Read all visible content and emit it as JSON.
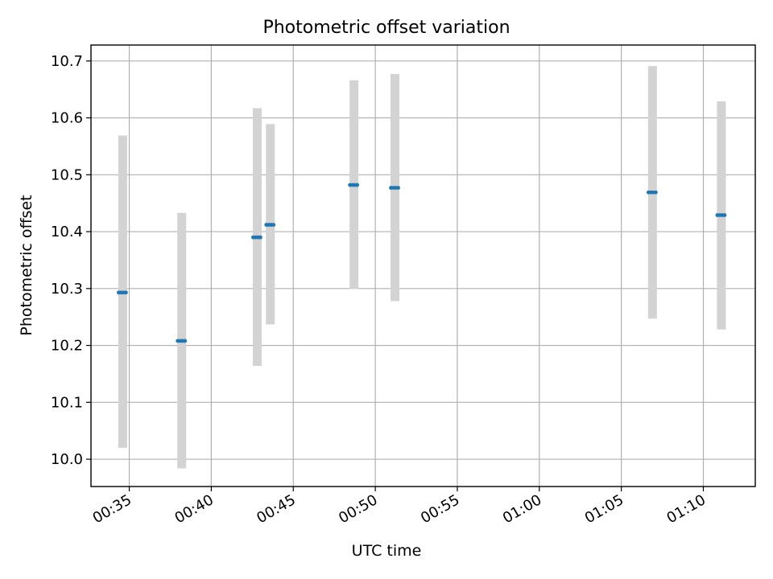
{
  "chart_data": {
    "type": "scatter",
    "title": "Photometric offset variation",
    "xlabel": "UTC time",
    "ylabel": "Photometric offset",
    "xlim": [
      "00:32:40",
      "01:13:10"
    ],
    "ylim": [
      9.952,
      10.728
    ],
    "x_ticks": [
      "00:35",
      "00:40",
      "00:45",
      "00:50",
      "00:55",
      "01:00",
      "01:05",
      "01:10"
    ],
    "y_ticks": [
      "10.0",
      "10.1",
      "10.2",
      "10.3",
      "10.4",
      "10.5",
      "10.6",
      "10.7"
    ],
    "grid": true,
    "points": [
      {
        "x": "00:34:36",
        "y": 10.293,
        "y_low": 10.02,
        "y_high": 10.569
      },
      {
        "x": "00:38:12",
        "y": 10.208,
        "y_low": 9.984,
        "y_high": 10.433
      },
      {
        "x": "00:42:48",
        "y": 10.39,
        "y_low": 10.164,
        "y_high": 10.617
      },
      {
        "x": "00:43:36",
        "y": 10.412,
        "y_low": 10.237,
        "y_high": 10.589
      },
      {
        "x": "00:48:42",
        "y": 10.482,
        "y_low": 10.299,
        "y_high": 10.666
      },
      {
        "x": "00:51:12",
        "y": 10.477,
        "y_low": 10.278,
        "y_high": 10.677
      },
      {
        "x": "01:06:54",
        "y": 10.469,
        "y_low": 10.247,
        "y_high": 10.691
      },
      {
        "x": "01:11:06",
        "y": 10.429,
        "y_low": 10.228,
        "y_high": 10.629
      }
    ],
    "colors": {
      "marker": "#1f77b4",
      "error_bar": "#d3d3d3",
      "grid": "#b0b0b0",
      "axis": "#000000"
    }
  }
}
